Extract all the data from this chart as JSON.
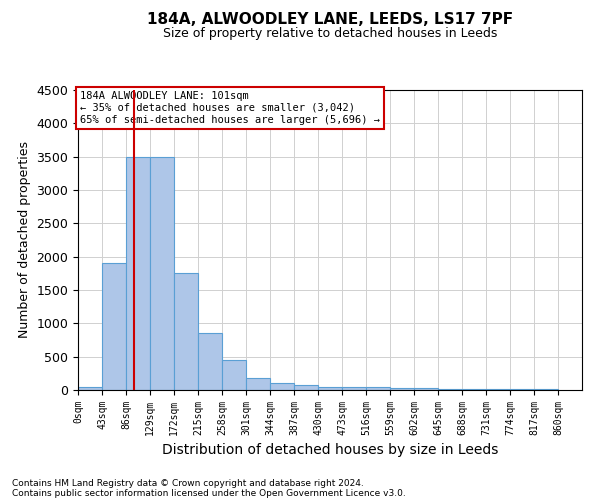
{
  "title": "184A, ALWOODLEY LANE, LEEDS, LS17 7PF",
  "subtitle": "Size of property relative to detached houses in Leeds",
  "xlabel": "Distribution of detached houses by size in Leeds",
  "ylabel": "Number of detached properties",
  "footer_line1": "Contains HM Land Registry data © Crown copyright and database right 2024.",
  "footer_line2": "Contains public sector information licensed under the Open Government Licence v3.0.",
  "annotation_line1": "184A ALWOODLEY LANE: 101sqm",
  "annotation_line2": "← 35% of detached houses are smaller (3,042)",
  "annotation_line3": "65% of semi-detached houses are larger (5,696) →",
  "property_size": 101,
  "bin_width": 43,
  "bin_starts": [
    0,
    43,
    86,
    129,
    172,
    215,
    258,
    301,
    344,
    387,
    430,
    473,
    516,
    559,
    602,
    645,
    688,
    731,
    774,
    817
  ],
  "bar_heights": [
    50,
    1900,
    3500,
    3500,
    1750,
    850,
    450,
    175,
    100,
    75,
    50,
    50,
    40,
    30,
    25,
    20,
    15,
    12,
    10,
    10
  ],
  "bar_color": "#aec6e8",
  "bar_edge_color": "#5a9fd4",
  "vline_color": "#cc0000",
  "annotation_box_color": "#cc0000",
  "grid_color": "#d0d0d0",
  "ylim": [
    0,
    4500
  ],
  "xlim": [
    0,
    903
  ],
  "tick_labels": [
    "0sqm",
    "43sqm",
    "86sqm",
    "129sqm",
    "172sqm",
    "215sqm",
    "258sqm",
    "301sqm",
    "344sqm",
    "387sqm",
    "430sqm",
    "473sqm",
    "516sqm",
    "559sqm",
    "602sqm",
    "645sqm",
    "688sqm",
    "731sqm",
    "774sqm",
    "817sqm",
    "860sqm"
  ]
}
